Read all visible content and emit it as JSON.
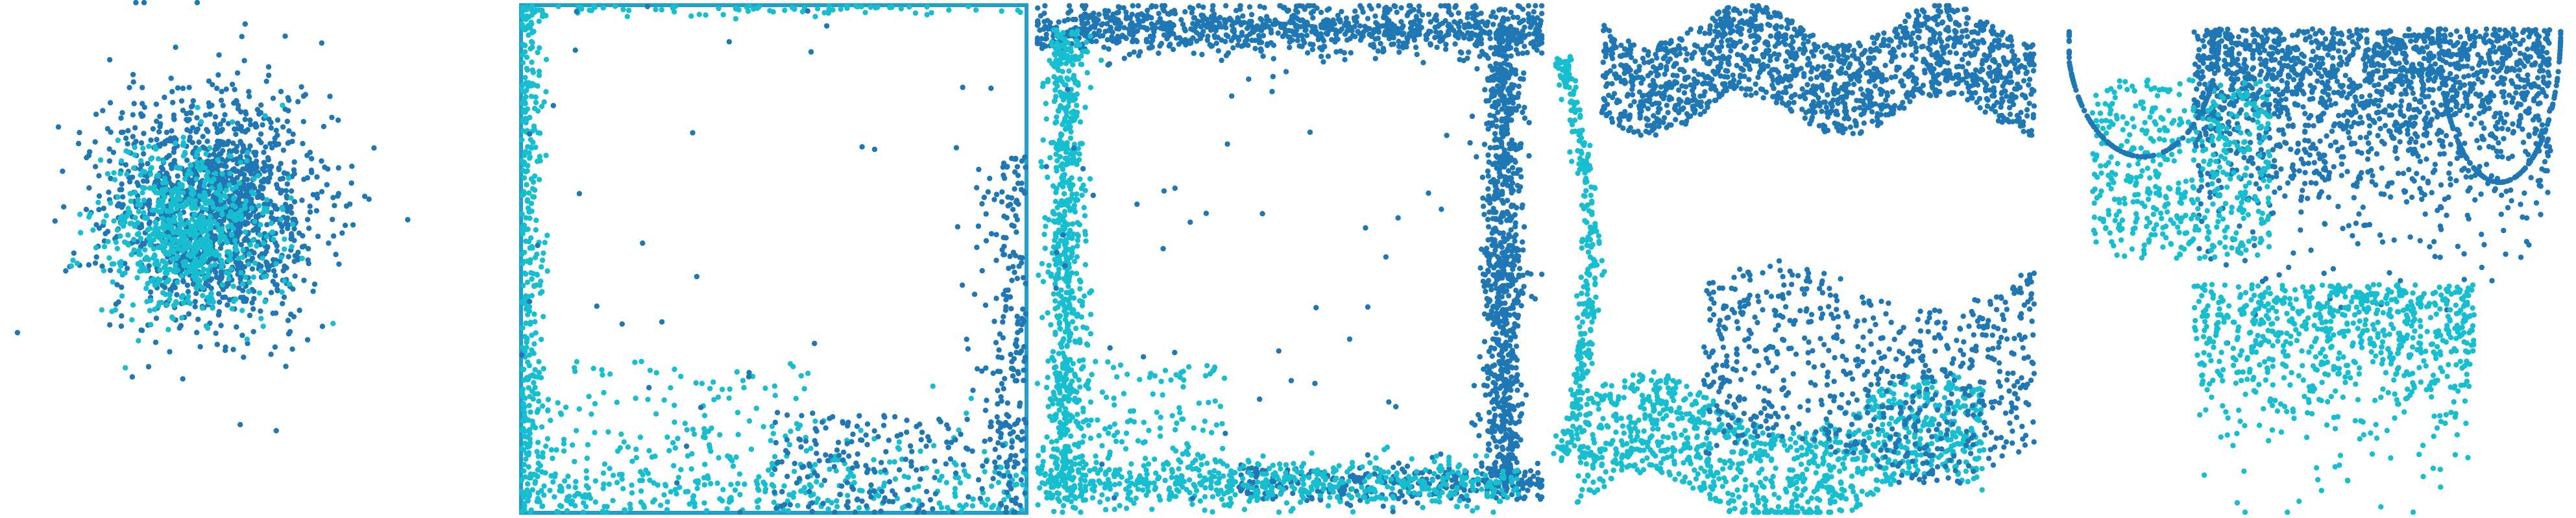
{
  "colors": {
    "dark_blue": "#1f77b4",
    "cyan": "#17becf",
    "frame": "#1f9fc9"
  },
  "chart_data": [
    {
      "type": "scatter",
      "panel": "gaussian-cloud",
      "series": [
        {
          "name": "",
          "color": "#1f77b4",
          "distribution": "gaussian",
          "center": [
            0.42,
            0.4
          ],
          "spread": [
            0.1,
            0.11
          ],
          "count": 1500
        },
        {
          "name": "",
          "color": "#17becf",
          "distribution": "gaussian",
          "center": [
            0.36,
            0.45
          ],
          "spread": [
            0.08,
            0.08
          ],
          "count": 700
        }
      ],
      "xlim": [
        0,
        1
      ],
      "ylim": [
        0,
        1
      ],
      "grid": false
    },
    {
      "type": "scatter",
      "panel": "square-boundary",
      "frame": true,
      "series": [
        {
          "name": "",
          "color": "#17becf",
          "distribution": "edge",
          "count": 900
        },
        {
          "name": "",
          "color": "#1f77b4",
          "distribution": "bottom-right",
          "count": 400
        },
        {
          "name": "",
          "color": "#1f77b4",
          "distribution": "uniform",
          "count": 40
        }
      ],
      "xlim": [
        0,
        1
      ],
      "ylim": [
        0,
        1
      ],
      "grid": false
    },
    {
      "type": "scatter",
      "panel": "square-ring",
      "series": [
        {
          "name": "",
          "color": "#1f77b4",
          "distribution": "ring-dark",
          "count": 2200
        },
        {
          "name": "",
          "color": "#17becf",
          "distribution": "ring-light",
          "count": 1400
        },
        {
          "name": "",
          "color": "#1f77b4",
          "distribution": "uniform",
          "count": 60
        }
      ],
      "xlim": [
        0,
        1
      ],
      "ylim": [
        0,
        1
      ],
      "grid": false
    },
    {
      "type": "scatter",
      "panel": "bands",
      "series": [
        {
          "name": "",
          "color": "#1f77b4",
          "distribution": "top-band",
          "count": 1500
        },
        {
          "name": "",
          "color": "#17becf",
          "distribution": "bottom-band",
          "count": 1100
        },
        {
          "name": "",
          "color": "#1f77b4",
          "distribution": "bottom-band-dark",
          "count": 700
        },
        {
          "name": "",
          "color": "#17becf",
          "distribution": "left-arc",
          "count": 300
        }
      ],
      "xlim": [
        0,
        1
      ],
      "ylim": [
        0,
        1
      ],
      "grid": false
    },
    {
      "type": "scatter",
      "panel": "mixed",
      "series": [
        {
          "name": "",
          "color": "#1f77b4",
          "distribution": "upper-mass",
          "count": 1800
        },
        {
          "name": "",
          "color": "#17becf",
          "distribution": "lower-mass",
          "count": 1300
        },
        {
          "name": "",
          "color": "#1f77b4",
          "distribution": "arcs",
          "count": 300
        }
      ],
      "xlim": [
        0,
        1
      ],
      "ylim": [
        0,
        1
      ],
      "grid": false
    }
  ]
}
